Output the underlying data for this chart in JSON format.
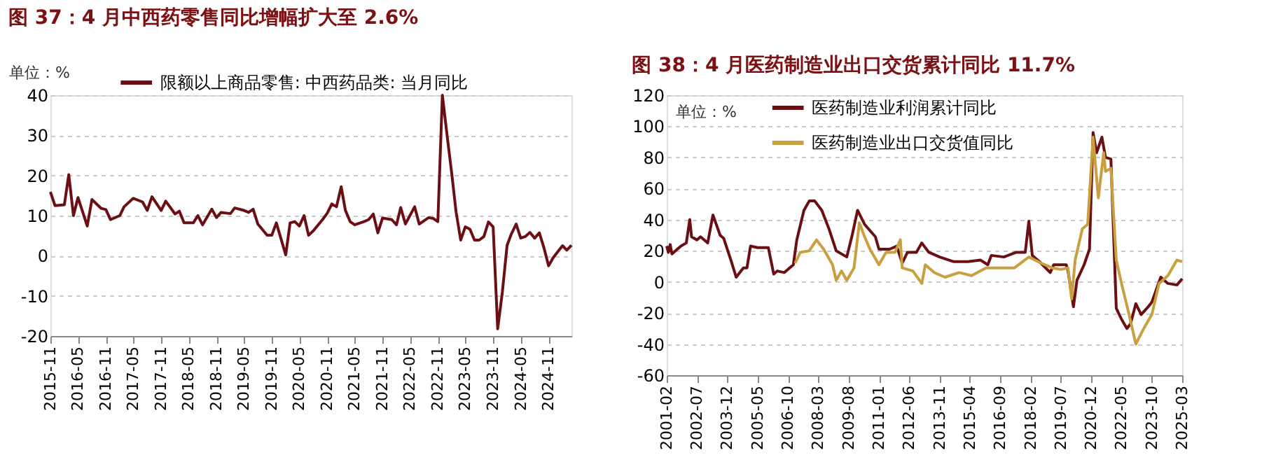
{
  "chart_data": [
    {
      "type": "line",
      "title": "图 37：4 月中西药零售同比增幅扩大至 2.6%",
      "ylabel": "单位：%",
      "x": [
        "2015-11",
        "2015-12",
        "2016-02",
        "2016-03",
        "2016-04",
        "2016-05",
        "2016-07",
        "2016-08",
        "2016-10",
        "2016-11",
        "2016-12",
        "2017-02",
        "2017-03",
        "2017-05",
        "2017-07",
        "2017-08",
        "2017-09",
        "2017-11",
        "2017-12",
        "2018-02",
        "2018-03",
        "2018-04",
        "2018-06",
        "2018-07",
        "2018-08",
        "2018-10",
        "2018-11",
        "2018-12",
        "2019-02",
        "2019-03",
        "2019-05",
        "2019-06",
        "2019-07",
        "2019-08",
        "2019-10",
        "2019-11",
        "2019-12",
        "2020-02",
        "2020-03",
        "2020-04",
        "2020-05",
        "2020-06",
        "2020-07",
        "2020-08",
        "2020-10",
        "2020-11",
        "2020-12",
        "2021-01",
        "2021-02",
        "2021-03",
        "2021-04",
        "2021-05",
        "2021-07",
        "2021-08",
        "2021-09",
        "2021-10",
        "2021-11",
        "2022-01",
        "2022-02",
        "2022-03",
        "2022-04",
        "2022-06",
        "2022-07",
        "2022-09",
        "2022-10",
        "2022-11",
        "2022-12",
        "2023-01",
        "2023-02",
        "2023-03",
        "2023-04",
        "2023-05",
        "2023-06",
        "2023-07",
        "2023-08",
        "2023-09",
        "2023-10",
        "2023-11",
        "2023-12",
        "2024-01",
        "2024-02",
        "2024-03",
        "2024-04",
        "2024-05",
        "2024-06",
        "2024-07",
        "2024-08",
        "2024-09",
        "2024-10",
        "2024-11",
        "2024-12",
        "2025-01",
        "2025-02",
        "2025-03",
        "2025-04"
      ],
      "series": [
        {
          "name": "限额以上商品零售: 中西药品类: 当月同比",
          "color": "#6b0f14",
          "values": [
            15.9,
            12.5,
            12.7,
            20.2,
            10,
            14.5,
            7.4,
            14,
            11.8,
            11.5,
            9,
            10,
            12.2,
            14.3,
            13.4,
            11.3,
            14.7,
            11.3,
            13.6,
            10.4,
            11.1,
            8.2,
            8.2,
            10,
            7.7,
            11.6,
            9.5,
            10.8,
            10.5,
            11.9,
            11.3,
            10.8,
            11.6,
            7.9,
            5.1,
            5.1,
            8.2,
            0.2,
            8.2,
            8.5,
            7.4,
            10,
            5.1,
            6.2,
            9,
            10.6,
            12.9,
            12.2,
            17.2,
            11.3,
            8.5,
            7.7,
            8.5,
            9,
            10.4,
            5.7,
            9.4,
            9,
            7.7,
            12,
            7.9,
            12.2,
            7.9,
            9.5,
            9.3,
            8.5,
            40,
            30,
            20.4,
            11,
            3.9,
            7.2,
            6.6,
            3.9,
            3.9,
            4.8,
            8.4,
            7.2,
            -18.2,
            -9,
            2.6,
            5.5,
            7.9,
            4.4,
            4.8,
            5.8,
            4.4,
            5.7,
            2,
            -2.5,
            -0.5,
            1,
            2.5,
            1.4,
            2.6
          ]
        }
      ],
      "xlim": [
        "2015-11",
        "2025-04"
      ],
      "xticks": [
        "2015-11",
        "2016-05",
        "2016-11",
        "2017-05",
        "2017-11",
        "2018-05",
        "2018-11",
        "2019-05",
        "2019-11",
        "2020-05",
        "2020-11",
        "2021-05",
        "2021-11",
        "2022-05",
        "2022-11",
        "2023-05",
        "2023-11",
        "2024-05",
        "2024-11"
      ],
      "ylim": [
        -20,
        40
      ],
      "yticks": [
        -20,
        -10,
        0,
        10,
        20,
        30,
        40
      ],
      "grid": "y",
      "legend": "top",
      "line_style": "solid",
      "marker": "none"
    },
    {
      "type": "line",
      "title": "图 38：4 月医药制造业出口交货累计同比 11.7%",
      "ylabel": "单位：%",
      "series": [
        {
          "name": "医药制造业利润累计同比",
          "color": "#6b0f14",
          "x": [
            "2001-02",
            "2001-03",
            "2001-04",
            "2001-05",
            "2001-10",
            "2002-01",
            "2002-03",
            "2002-04",
            "2002-07",
            "2002-09",
            "2003-01",
            "2003-04",
            "2003-08",
            "2003-10",
            "2004-02",
            "2004-05",
            "2004-09",
            "2004-11",
            "2005-01",
            "2005-05",
            "2005-11",
            "2006-02",
            "2006-04",
            "2006-08",
            "2007-01",
            "2007-03",
            "2007-07",
            "2007-10",
            "2008-01",
            "2008-05",
            "2008-09",
            "2009-01",
            "2009-07",
            "2009-10",
            "2010-01",
            "2010-05",
            "2010-11",
            "2011-01",
            "2011-07",
            "2011-11",
            "2012-02",
            "2012-05",
            "2012-10",
            "2013-01",
            "2013-05",
            "2013-11",
            "2014-07",
            "2015-03",
            "2015-10",
            "2016-02",
            "2016-04",
            "2016-11",
            "2017-06",
            "2017-11",
            "2018-01",
            "2018-03",
            "2018-07",
            "2019-01",
            "2019-03",
            "2019-10",
            "2019-11",
            "2020-02",
            "2020-04",
            "2020-08",
            "2020-11",
            "2021-01",
            "2021-03",
            "2021-06",
            "2021-08",
            "2021-11",
            "2022-02",
            "2022-05",
            "2022-08",
            "2022-10",
            "2023-01",
            "2023-04",
            "2023-08",
            "2023-10",
            "2024-03",
            "2024-07",
            "2024-12",
            "2025-03"
          ],
          "values": [
            23,
            19,
            24,
            18,
            23,
            25,
            40,
            29,
            27,
            29,
            25,
            43,
            30,
            28,
            14,
            3,
            9,
            9,
            23,
            22,
            22,
            5,
            7,
            6,
            11,
            27,
            46,
            52,
            52,
            46,
            34,
            20,
            16,
            30,
            46,
            37,
            29,
            21,
            21,
            23,
            12,
            19,
            19,
            25,
            19,
            16,
            13,
            13,
            14,
            11,
            17,
            16,
            19,
            19,
            39,
            17,
            13,
            6,
            11,
            11,
            7,
            -16,
            1,
            11,
            21,
            96,
            83,
            93,
            80,
            79,
            -17,
            -24,
            -30,
            -27,
            -14,
            -21,
            -16,
            -13,
            3,
            -1,
            -2,
            2
          ]
        },
        {
          "name": "医药制造业出口交货值同比",
          "color": "#c9a040",
          "x": [
            "2007-02",
            "2007-05",
            "2007-10",
            "2008-02",
            "2008-06",
            "2008-11",
            "2009-01",
            "2009-04",
            "2009-07",
            "2009-11",
            "2010-02",
            "2010-05",
            "2010-08",
            "2011-01",
            "2011-05",
            "2011-10",
            "2012-01",
            "2012-02",
            "2012-08",
            "2013-01",
            "2013-03",
            "2013-08",
            "2014-02",
            "2014-10",
            "2015-05",
            "2016-01",
            "2016-09",
            "2017-05",
            "2018-01",
            "2018-08",
            "2019-02",
            "2019-07",
            "2019-11",
            "2020-01",
            "2020-03",
            "2020-07",
            "2020-10",
            "2021-01",
            "2021-04",
            "2021-07",
            "2021-08",
            "2021-11",
            "2022-02",
            "2022-05",
            "2022-09",
            "2023-01",
            "2023-05",
            "2023-10",
            "2024-02",
            "2024-07",
            "2024-12",
            "2025-03"
          ],
          "values": [
            12,
            19,
            20,
            27,
            21,
            11,
            1,
            7,
            1,
            9,
            38,
            29,
            21,
            11,
            19,
            19,
            27,
            9,
            7,
            -1,
            11,
            6,
            3,
            6,
            4,
            9,
            9,
            9,
            16,
            12,
            9,
            8,
            9,
            -11,
            14,
            34,
            37,
            93,
            54,
            83,
            71,
            73,
            14,
            -1,
            -20,
            -40,
            -31,
            -21,
            -1,
            4,
            14,
            13
          ]
        }
      ],
      "xlim": [
        "2001-02",
        "2025-03"
      ],
      "xticks": [
        "2001-02",
        "2002-07",
        "2003-12",
        "2005-05",
        "2006-10",
        "2008-03",
        "2009-08",
        "2011-01",
        "2012-06",
        "2013-11",
        "2015-04",
        "2016-09",
        "2018-02",
        "2019-07",
        "2020-12",
        "2022-05",
        "2023-10",
        "2025-03"
      ],
      "ylim": [
        -60,
        120
      ],
      "yticks": [
        -60,
        -40,
        -20,
        0,
        20,
        40,
        60,
        80,
        100,
        120
      ],
      "grid": "y",
      "legend": "top left",
      "line_style": "solid",
      "marker": "none"
    }
  ]
}
